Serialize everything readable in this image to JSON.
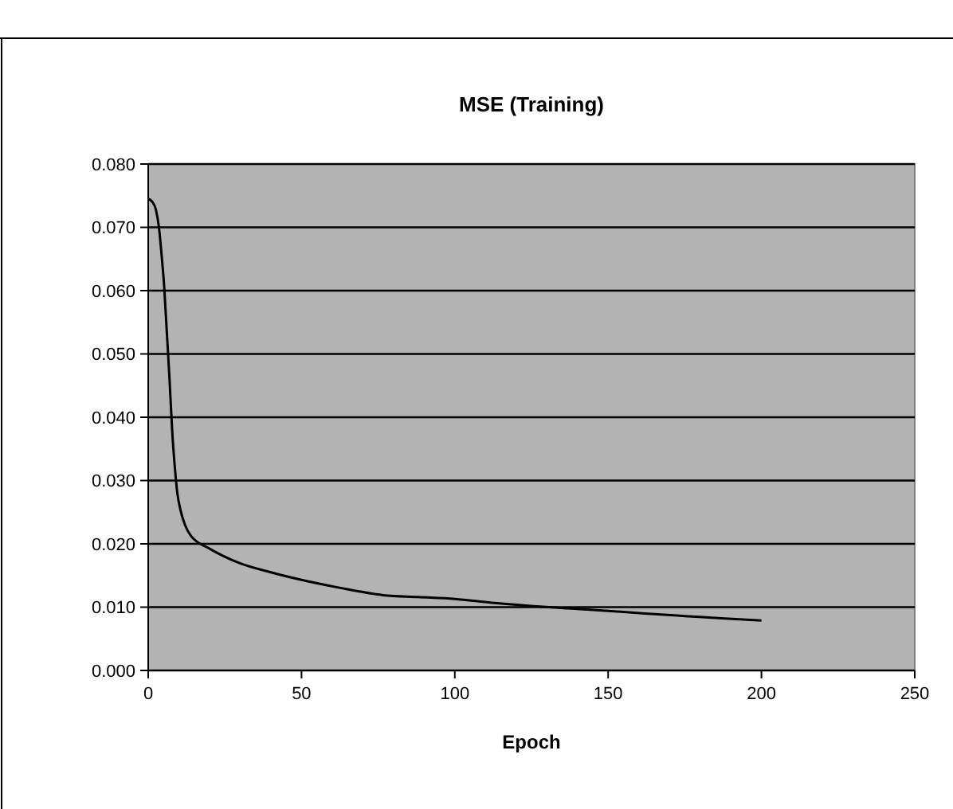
{
  "chart_data": {
    "type": "line",
    "title": "MSE (Training)",
    "xlabel": "Epoch",
    "series": [
      {
        "color": "#000000",
        "x": [
          0,
          1.2,
          2.5,
          3.5,
          4.3,
          5.2,
          6,
          7,
          7.8,
          8.7,
          9.5,
          10.5,
          12,
          14,
          16,
          19,
          24,
          29.6,
          40,
          50,
          62,
          76.6,
          88,
          100,
          112,
          124.8,
          137,
          150,
          162,
          175,
          188,
          200
        ],
        "values": [
          0.0745,
          0.0741,
          0.0728,
          0.07,
          0.066,
          0.0607,
          0.054,
          0.0456,
          0.038,
          0.032,
          0.028,
          0.0254,
          0.023,
          0.0212,
          0.0203,
          0.0195,
          0.0182,
          0.017,
          0.0155,
          0.0143,
          0.0131,
          0.0119,
          0.0116,
          0.0113,
          0.0107,
          0.0102,
          0.0098,
          0.0094,
          0.009,
          0.0086,
          0.0082,
          0.0079
        ]
      }
    ],
    "xlim": [
      0,
      250
    ],
    "xticks": [
      0,
      50,
      100,
      150,
      200,
      250
    ],
    "ylim": [
      0,
      0.08
    ],
    "yticks": [
      {
        "value": 0,
        "label": "0.000"
      },
      {
        "value": 0.01,
        "label": "0.010"
      },
      {
        "value": 0.02,
        "label": "0.020"
      },
      {
        "value": 0.03,
        "label": "0.030"
      },
      {
        "value": 0.04,
        "label": "0.040"
      },
      {
        "value": 0.05,
        "label": "0.050"
      },
      {
        "value": 0.06,
        "label": "0.060"
      },
      {
        "value": 0.07,
        "label": "0.070"
      },
      {
        "value": 0.08,
        "label": "0.080"
      }
    ],
    "grid": "y",
    "marker": "none",
    "line_style": "solid"
  }
}
